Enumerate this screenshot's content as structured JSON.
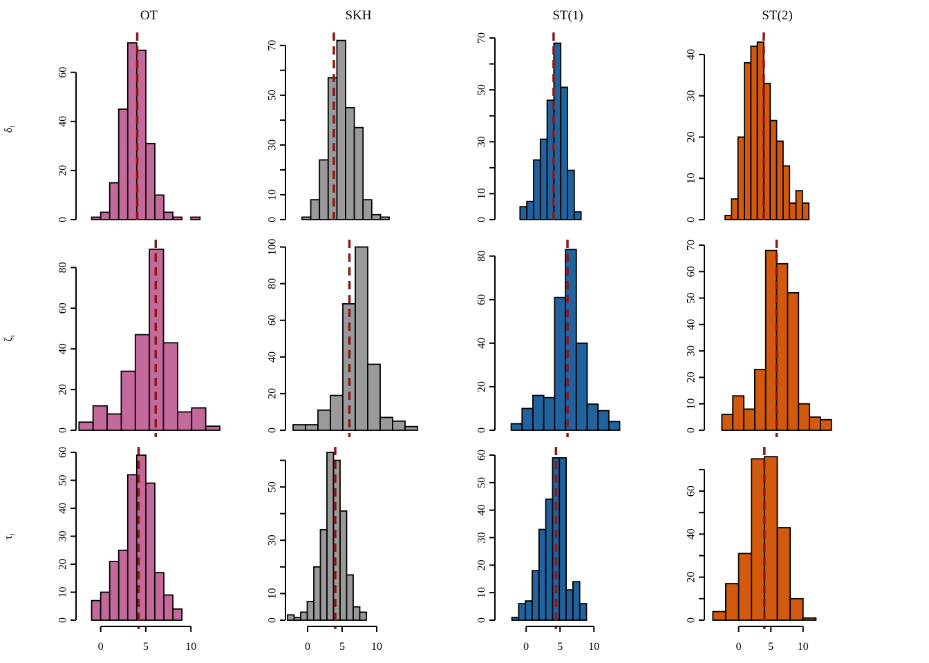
{
  "figure": {
    "background": "#ffffff",
    "description": "3x4 grid of histograms of parameter estimates with dark-red dashed reference line in each panel"
  },
  "columns": [
    {
      "label": "OT",
      "color": "#C4699C"
    },
    {
      "label": "SKH",
      "color": "#9A9A9A"
    },
    {
      "label": "ST(1)",
      "color": "#21639F"
    },
    {
      "label": "ST(2)",
      "color": "#D15A0E"
    }
  ],
  "rows": [
    {
      "name": "delta",
      "symbol": "δ",
      "subscript": "i"
    },
    {
      "name": "zeta",
      "symbol": "ζ",
      "subscript": "i"
    },
    {
      "name": "tau",
      "symbol": "τ",
      "subscript": "i"
    }
  ],
  "ref_line": {
    "color": "#8B1717",
    "style": "dashed"
  },
  "bar_edge_color": "#000000",
  "x_axis_labels": [
    "0",
    "5",
    "10"
  ],
  "chart_data": [
    {
      "type": "histogram",
      "row": "delta",
      "column": "OT",
      "color": "#C4699C",
      "counts": [
        1,
        3,
        15,
        45,
        72,
        69,
        31,
        10,
        3,
        1,
        0,
        1
      ],
      "x_left": -1,
      "bin_width": 1,
      "ref_x": 4.05,
      "y_scale_max": 74,
      "xlim": [
        -2.5,
        13.2
      ],
      "yticks": [
        [
          0,
          "0"
        ],
        [
          20,
          "20"
        ],
        [
          40,
          "40"
        ],
        [
          60,
          "60"
        ]
      ]
    },
    {
      "type": "histogram",
      "row": "delta",
      "column": "SKH",
      "color": "#9A9A9A",
      "counts": [
        1,
        8,
        24,
        57,
        72,
        45,
        37,
        8,
        2,
        1
      ],
      "x_left": -0.8,
      "bin_width": 1.26,
      "ref_x": 3.8,
      "y_scale_max": 73,
      "xlim": [
        -2.9,
        17.6
      ],
      "yticks": [
        [
          0,
          "0"
        ],
        [
          10,
          "10"
        ],
        [
          20,
          ""
        ],
        [
          30,
          "30"
        ],
        [
          40,
          ""
        ],
        [
          50,
          "50"
        ],
        [
          60,
          ""
        ],
        [
          70,
          "70"
        ]
      ]
    },
    {
      "type": "histogram",
      "row": "delta",
      "column": "ST(1)",
      "color": "#21639F",
      "counts": [
        5,
        7,
        23,
        31,
        46,
        68,
        51,
        19,
        3
      ],
      "x_left": -0.9,
      "bin_width": 1,
      "ref_x": 4.05,
      "y_scale_max": 70,
      "xlim": [
        -4.3,
        16.6
      ],
      "yticks": [
        [
          0,
          "0"
        ],
        [
          10,
          "10"
        ],
        [
          20,
          ""
        ],
        [
          30,
          "30"
        ],
        [
          40,
          ""
        ],
        [
          50,
          "50"
        ],
        [
          60,
          ""
        ],
        [
          70,
          "70"
        ]
      ]
    },
    {
      "type": "histogram",
      "row": "delta",
      "column": "ST(2)",
      "color": "#D15A0E",
      "counts": [
        1,
        5,
        20,
        38,
        42,
        43,
        33,
        24,
        19,
        13,
        4,
        7,
        4
      ],
      "x_left": -2.1,
      "bin_width": 1,
      "ref_x": 3.9,
      "y_scale_max": 44,
      "xlim": [
        -5,
        17
      ],
      "yticks": [
        [
          0,
          "0"
        ],
        [
          10,
          "10"
        ],
        [
          20,
          "20"
        ],
        [
          30,
          "30"
        ],
        [
          40,
          "40"
        ]
      ]
    },
    {
      "type": "histogram",
      "row": "zeta",
      "column": "OT",
      "color": "#C4699C",
      "counts": [
        4,
        12,
        8,
        29,
        47,
        89,
        43,
        9,
        11,
        2
      ],
      "x_left": -2.4,
      "bin_width": 1.56,
      "ref_x": 6.1,
      "y_scale_max": 91,
      "xlim": [
        -2.5,
        13.2
      ],
      "yticks": [
        [
          0,
          "0"
        ],
        [
          20,
          "20"
        ],
        [
          40,
          "40"
        ],
        [
          60,
          "60"
        ],
        [
          80,
          "80"
        ]
      ]
    },
    {
      "type": "histogram",
      "row": "zeta",
      "column": "SKH",
      "color": "#9A9A9A",
      "counts": [
        3,
        3,
        11,
        19,
        69,
        100,
        36,
        7,
        5,
        2
      ],
      "x_left": -2.1,
      "bin_width": 1.8,
      "ref_x": 6.05,
      "y_scale_max": 101,
      "xlim": [
        -2.9,
        17.6
      ],
      "yticks": [
        [
          0,
          "0"
        ],
        [
          20,
          "20"
        ],
        [
          40,
          "40"
        ],
        [
          60,
          "60"
        ],
        [
          80,
          "80"
        ],
        [
          100,
          "100"
        ]
      ]
    },
    {
      "type": "histogram",
      "row": "zeta",
      "column": "ST(1)",
      "color": "#21639F",
      "counts": [
        3,
        10,
        16,
        15,
        61,
        83,
        40,
        12,
        9,
        4
      ],
      "x_left": -2.2,
      "bin_width": 1.6,
      "ref_x": 6.1,
      "y_scale_max": 85,
      "xlim": [
        -4.3,
        16.6
      ],
      "yticks": [
        [
          0,
          "0"
        ],
        [
          20,
          "20"
        ],
        [
          40,
          "40"
        ],
        [
          60,
          "60"
        ],
        [
          80,
          "80"
        ]
      ]
    },
    {
      "type": "histogram",
      "row": "zeta",
      "column": "ST(2)",
      "color": "#D15A0E",
      "counts": [
        6,
        13,
        8,
        23,
        68,
        63,
        52,
        10,
        5,
        4
      ],
      "x_left": -2.6,
      "bin_width": 1.7,
      "ref_x": 5.9,
      "y_scale_max": 70,
      "xlim": [
        -5,
        17
      ],
      "yticks": [
        [
          0,
          "0"
        ],
        [
          10,
          "10"
        ],
        [
          20,
          "20"
        ],
        [
          30,
          "30"
        ],
        [
          40,
          "40"
        ],
        [
          50,
          "50"
        ],
        [
          60,
          "60"
        ],
        [
          70,
          "70"
        ]
      ]
    },
    {
      "type": "histogram",
      "row": "tau",
      "column": "OT",
      "color": "#C4699C",
      "counts": [
        7,
        10,
        21,
        25,
        52,
        59,
        49,
        17,
        9,
        4
      ],
      "x_left": -1,
      "bin_width": 1,
      "ref_x": 4.2,
      "y_scale_max": 60,
      "xlim": [
        -2.5,
        13.2
      ],
      "yticks": [
        [
          0,
          "0"
        ],
        [
          10,
          "10"
        ],
        [
          20,
          "20"
        ],
        [
          30,
          "30"
        ],
        [
          40,
          "40"
        ],
        [
          50,
          "50"
        ],
        [
          60,
          "60"
        ]
      ],
      "xticks": [
        0,
        5,
        10
      ]
    },
    {
      "type": "histogram",
      "row": "tau",
      "column": "SKH",
      "color": "#9A9A9A",
      "counts": [
        2,
        1,
        3,
        7,
        20,
        34,
        63,
        60,
        41,
        17,
        5,
        3
      ],
      "x_left": -2.9,
      "bin_width": 0.95,
      "ref_x": 4.0,
      "y_scale_max": 63,
      "xlim": [
        -2.9,
        17.6
      ],
      "yticks": [
        [
          0,
          "0"
        ],
        [
          10,
          "10"
        ],
        [
          20,
          ""
        ],
        [
          30,
          "30"
        ],
        [
          40,
          ""
        ],
        [
          50,
          "50"
        ],
        [
          60,
          ""
        ]
      ],
      "xticks": [
        0,
        5,
        10
      ]
    },
    {
      "type": "histogram",
      "row": "tau",
      "column": "ST(1)",
      "color": "#21639F",
      "counts": [
        1,
        6,
        7,
        18,
        33,
        44,
        59,
        59,
        11,
        14,
        6
      ],
      "x_left": -2.1,
      "bin_width": 1,
      "ref_x": 4.4,
      "y_scale_max": 61,
      "xlim": [
        -4.3,
        16.6
      ],
      "yticks": [
        [
          0,
          "0"
        ],
        [
          10,
          "10"
        ],
        [
          20,
          "20"
        ],
        [
          30,
          "30"
        ],
        [
          40,
          "40"
        ],
        [
          50,
          "50"
        ],
        [
          60,
          "60"
        ]
      ],
      "xticks": [
        0,
        5,
        10
      ]
    },
    {
      "type": "histogram",
      "row": "tau",
      "column": "ST(2)",
      "color": "#D15A0E",
      "counts": [
        4,
        17,
        31,
        75,
        76,
        43,
        10,
        1
      ],
      "x_left": -4,
      "bin_width": 2,
      "ref_x": 4.0,
      "y_scale_max": 78,
      "xlim": [
        -5,
        17
      ],
      "yticks": [
        [
          0,
          "0"
        ],
        [
          10,
          ""
        ],
        [
          20,
          "20"
        ],
        [
          30,
          ""
        ],
        [
          40,
          "40"
        ],
        [
          50,
          ""
        ],
        [
          60,
          "60"
        ],
        [
          70,
          ""
        ]
      ],
      "xticks": [
        0,
        5,
        10
      ]
    }
  ]
}
